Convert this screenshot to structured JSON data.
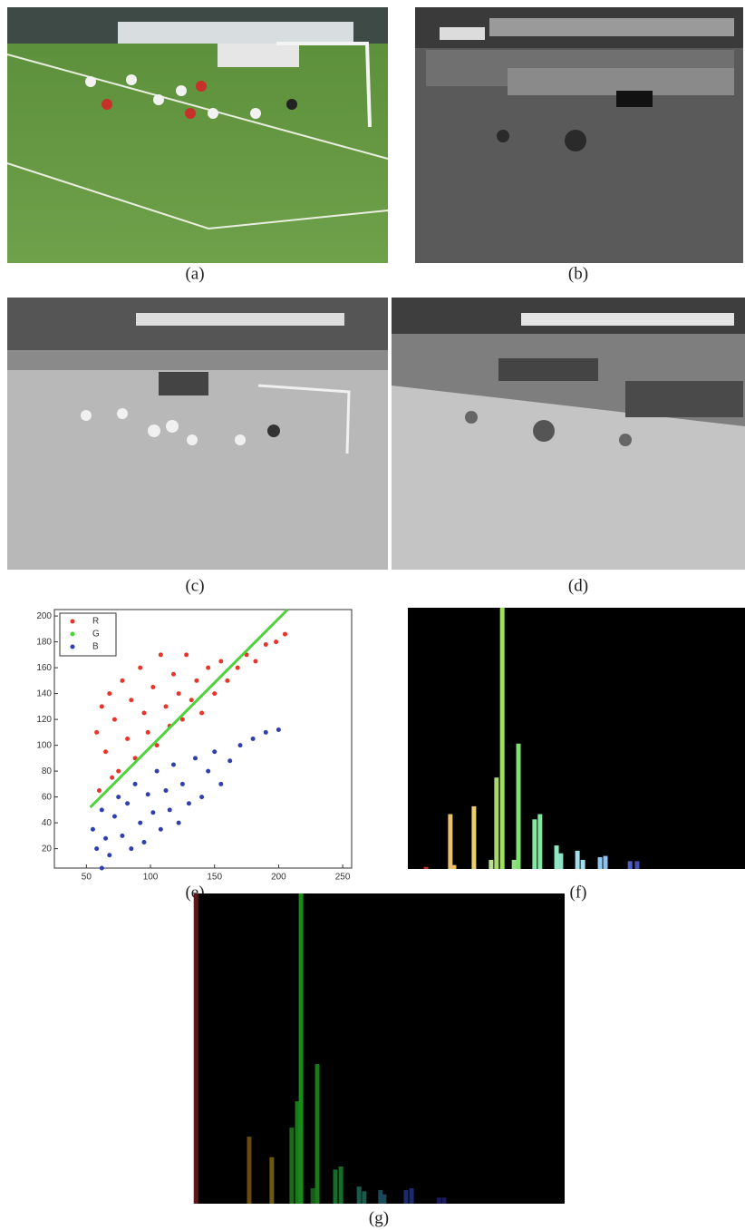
{
  "panels": [
    {
      "label": "(a)"
    },
    {
      "label": "(b)"
    },
    {
      "label": "(c)"
    },
    {
      "label": "(d)"
    }
  ],
  "chart_data": [
    {
      "type": "scatter",
      "caption": "(e)",
      "xlim": [
        25,
        257
      ],
      "ylim": [
        5,
        205
      ],
      "xticks": [
        50,
        100,
        150,
        200,
        250
      ],
      "yticks": [
        20,
        40,
        60,
        80,
        100,
        120,
        140,
        160,
        180,
        200
      ],
      "legend": "upper-left",
      "series": [
        {
          "name": "R",
          "color": "#e8352b",
          "x": [
            58,
            62,
            65,
            68,
            72,
            75,
            78,
            82,
            85,
            88,
            92,
            95,
            98,
            102,
            105,
            108,
            112,
            115,
            118,
            122,
            125,
            128,
            132,
            136,
            140,
            145,
            150,
            155,
            160,
            168,
            175,
            182,
            190,
            198,
            205,
            60,
            70
          ],
          "values": [
            110,
            130,
            95,
            140,
            120,
            80,
            150,
            105,
            135,
            90,
            160,
            125,
            110,
            145,
            100,
            170,
            130,
            115,
            155,
            140,
            120,
            170,
            135,
            150,
            125,
            160,
            140,
            165,
            150,
            160,
            170,
            165,
            178,
            180,
            186,
            65,
            75
          ]
        },
        {
          "name": "G",
          "color": "#4fd33a",
          "line": true,
          "x": [
            53,
            207
          ],
          "values": [
            52,
            205
          ]
        },
        {
          "name": "B",
          "color": "#2f3fae",
          "x": [
            55,
            58,
            62,
            65,
            68,
            72,
            75,
            78,
            82,
            85,
            88,
            92,
            95,
            98,
            102,
            105,
            108,
            112,
            115,
            118,
            122,
            125,
            130,
            135,
            140,
            145,
            150,
            155,
            162,
            170,
            180,
            190,
            200,
            62
          ],
          "values": [
            35,
            20,
            50,
            28,
            15,
            45,
            60,
            30,
            55,
            20,
            70,
            40,
            25,
            62,
            48,
            80,
            35,
            65,
            50,
            85,
            40,
            70,
            55,
            90,
            60,
            80,
            95,
            70,
            88,
            100,
            105,
            110,
            112,
            5
          ]
        }
      ]
    },
    {
      "type": "bar",
      "caption": "(f)",
      "xlim": [
        0,
        100
      ],
      "ylim": [
        0,
        100
      ],
      "x": [
        5.4,
        12.6,
        13.7,
        19.6,
        24.7,
        26.3,
        28,
        31.5,
        32.8,
        37.6,
        39.2,
        44.1,
        45.4,
        50.3,
        51.9,
        57,
        58.6,
        65.9,
        68
      ],
      "values": [
        0.8,
        21,
        1.5,
        24,
        3.5,
        35,
        100,
        3.5,
        48,
        19,
        21,
        9,
        6,
        7,
        3.5,
        4.5,
        5,
        3,
        3
      ],
      "colors": [
        "#c03030",
        "#e8c070",
        "#f0c060",
        "#e8d070",
        "#b8e090",
        "#a8d870",
        "#a0e060",
        "#90e080",
        "#80e070",
        "#80e8a0",
        "#80e8a0",
        "#90e8c0",
        "#90e0c8",
        "#a0e0e8",
        "#a0e0f0",
        "#90c8f0",
        "#90c0f0",
        "#5060c0",
        "#4050b8"
      ]
    },
    {
      "type": "bar",
      "caption": "(g)",
      "xlim": [
        0,
        100
      ],
      "ylim": [
        0,
        100
      ],
      "x": [
        0.3,
        14.7,
        20.8,
        26.2,
        27.7,
        28.7,
        31.9,
        33.1,
        38,
        39.5,
        44.4,
        45.8,
        50.2,
        51.2,
        57.1,
        58.6,
        66,
        67.4
      ],
      "values": [
        100,
        21.6,
        15,
        24.5,
        33,
        100,
        5,
        45,
        11,
        12,
        5.5,
        4,
        4.4,
        3,
        4.4,
        5,
        2,
        2
      ],
      "colors": [
        "#5a1a1a",
        "#6b4a10",
        "#6b5a10",
        "#1a6a1a",
        "#1a7a1a",
        "#1a8a1a",
        "#1a5a1a",
        "#1a7a1a",
        "#1a6a2a",
        "#1a6a2a",
        "#1a5a4a",
        "#1a5a4a",
        "#1a4a5a",
        "#1a4a5a",
        "#1a2a6a",
        "#1a2a6a",
        "#1a1a5a",
        "#1a1a5a"
      ]
    }
  ]
}
